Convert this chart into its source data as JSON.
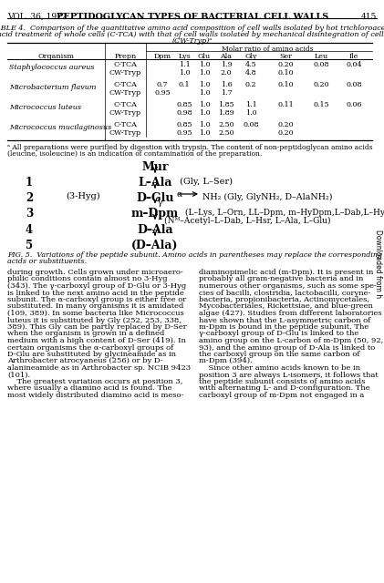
{
  "header_vol": "VOL. 36, 1972",
  "header_title": "PEPTIDOGLYCAN TYPES OF BACTERIAL CELL WALLS",
  "header_page": "415",
  "table_title_line1": "TABLE 4.  Comparison of the quantitative amino acid composition of cell walls isolated by hot trichloroacetic",
  "table_title_line2": "acid treatment of whole cells (C-TCA) with that of cell walls isolated by mechanical disintegration of cells",
  "table_title_line3": "(CW-Tryp)ᵃ",
  "molar_ratio_header": "Molar ratio of amino acids",
  "col_headers_left": [
    "Organism",
    "Prepn"
  ],
  "col_headers_data": [
    "Dpm",
    "Lys",
    "Glu",
    "Ala",
    "Gly",
    "Ser",
    "Leu",
    "Ile"
  ],
  "rows": [
    {
      "org": "Staphylococcus aureus",
      "prepn": "C-TCA",
      "dpm": "",
      "lys": "1.1",
      "glu": "1.0",
      "ala": "1.9",
      "gly": "4.5",
      "ser": "0.20",
      "leu": "0.08",
      "ile": "0.04"
    },
    {
      "org": "",
      "prepn": "CW-Tryp",
      "dpm": "",
      "lys": "1.0",
      "glu": "1.0",
      "ala": "2.0",
      "gly": "4.8",
      "ser": "0.10",
      "leu": "",
      "ile": ""
    },
    {
      "org": "Microbacterium flavum",
      "prepn": "C-TCA",
      "dpm": "0.7",
      "lys": "0.1",
      "glu": "1.0",
      "ala": "1.6",
      "gly": "0.2",
      "ser": "0.10",
      "leu": "0.20",
      "ile": "0.08"
    },
    {
      "org": "",
      "prepn": "CW-Tryp",
      "dpm": "0.95",
      "lys": "",
      "glu": "1.0",
      "ala": "1.7",
      "gly": "",
      "ser": "",
      "leu": "",
      "ile": ""
    },
    {
      "org": "Micrococcus luteus",
      "prepn": "C-TCA",
      "dpm": "",
      "lys": "0.85",
      "glu": "1.0",
      "ala": "1.85",
      "gly": "1.1",
      "ser": "0.11",
      "leu": "0.15",
      "ile": "0.06"
    },
    {
      "org": "",
      "prepn": "CW-Tryp",
      "dpm": "",
      "lys": "0.98",
      "glu": "1.0",
      "ala": "1.89",
      "gly": "1.0",
      "ser": "",
      "leu": "",
      "ile": ""
    },
    {
      "org": "Micrococcus mucilaginosus",
      "prepn": "C-TCA",
      "dpm": "",
      "lys": "0.85",
      "glu": "1.0",
      "ala": "2.50",
      "gly": "0.08",
      "ser": "0.20",
      "leu": "",
      "ile": ""
    },
    {
      "org": "",
      "prepn": "CW-Tryp",
      "dpm": "",
      "lys": "0.95",
      "glu": "1.0",
      "ala": "2.50",
      "gly": "",
      "ser": "0.20",
      "leu": "",
      "ile": ""
    }
  ],
  "footnote_line1": "ᵃ All preparations were purified by digestion with trypsin. The content of non-peptidoglycan amino acids",
  "footnote_line2": "(leucine, isoleucine) is an indication of contamination of the preparation.",
  "fig_caption_line1": "FIG. 5.  Variations of the peptide subunit. Amino acids in parentheses may replace the corresponding amino",
  "fig_caption_line2": "acids or substituents.",
  "body_left": [
    "during growth. Cells grown under microaero-",
    "philic conditions contain almost no 3-Hyg",
    "(343). The γ-carboxyl group of D-Glu or 3-Hyg",
    "is linked to the next amino acid in the peptide",
    "subunit. The α-carboxyl group is either free or",
    "substituted. In many organisms it is amidated",
    "(109, 389). In some bacteria like Micrococcus",
    "luteus it is substituted by Gly (252, 253, 338,",
    "389). This Gly can be partly replaced by D-Ser",
    "when the organism is grown in a defined",
    "medium with a high content of D-Ser (419). In",
    "certain organisms the α-carboxyl groups of",
    "D-Glu are substituted by glycineamide as in",
    "Arthrobacter atrocyaneus (256) or by D-",
    "alanineamide as in Arthrobacter sp. NCIB 9423",
    "(101).",
    "    The greatest variation occurs at position 3,",
    "where usually a diamino acid is found. The",
    "most widely distributed diamino acid is meso-"
  ],
  "body_right": [
    "diaminopimelic acid (m-Dpm). It is present in",
    "probably all gram-negative bacteria and in",
    "numerous other organisms, such as some spe-",
    "cies of bacilli, clostridia, lactobacilli, coryne-",
    "bacteria, propionibacteria, Actinomycetales,",
    "Mycobacteriales, Rickettsiae, and blue-green",
    "algae (427). Studies from different laboratories",
    "have shown that the L-asymmetric carbon of",
    "m-Dpm is bound in the peptide subunit. The",
    "γ-carboxyl group of D-Glu is linked to the",
    "amino group on the L-carbon of m-Dpm (50, 92,",
    "93), and the amino group of D-Ala is linked to",
    "the carboxyl group on the same carbon of",
    "m-Dpm (394).",
    "    Since other amino acids known to be in",
    "position 3 are always L-isomers, it follows that",
    "the peptide subunit consists of amino acids",
    "with alternating L- and D-configuration. The",
    "carboxyl group of m-Dpm not engaged in a"
  ],
  "sidebar": "Downloaded from h"
}
